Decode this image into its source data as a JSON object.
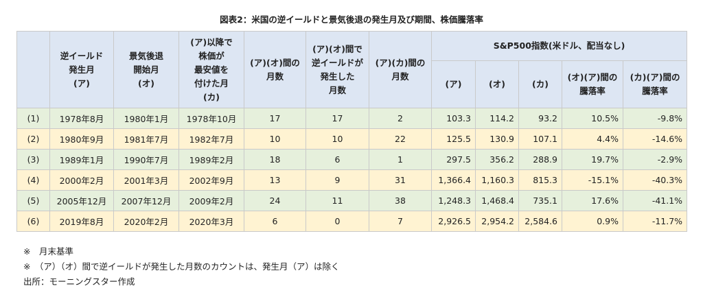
{
  "title": "図表2：米国の逆イールドと景気後退の発生月及び期間、株価騰落率",
  "table": {
    "header": [
      "",
      "逆イールド\n発生月\n(ア)",
      "景気後退\n開始月\n(オ)",
      "(ア)以降で\n株価が\n最安値を\n付けた月\n(カ)",
      "(ア)(オ)間の\n月数",
      "(ア)(オ)間で\n逆イールドが\n発生した\n月数",
      "(ア)(カ)間の\n月数"
    ],
    "group_header": "S&P500指数(米ドル、配当なし)",
    "sub_header": [
      "(ア)",
      "(オ)",
      "(カ)",
      "(オ)(ア)間の\n騰落率",
      "(カ)(ア)間の\n騰落率"
    ],
    "rows": [
      [
        "(1)",
        "1978年8月",
        "1980年1月",
        "1978年10月",
        "17",
        "17",
        "2",
        "103.3",
        "114.2",
        "93.2",
        "10.5%",
        "-9.8%"
      ],
      [
        "(2)",
        "1980年9月",
        "1981年7月",
        "1982年7月",
        "10",
        "10",
        "22",
        "125.5",
        "130.9",
        "107.1",
        "4.4%",
        "-14.6%"
      ],
      [
        "(3)",
        "1989年1月",
        "1990年7月",
        "1989年2月",
        "18",
        "6",
        "1",
        "297.5",
        "356.2",
        "288.9",
        "19.7%",
        "-2.9%"
      ],
      [
        "(4)",
        "2000年2月",
        "2001年3月",
        "2002年9月",
        "13",
        "9",
        "31",
        "1,366.4",
        "1,160.3",
        "815.3",
        "-15.1%",
        "-40.3%"
      ],
      [
        "(5)",
        "2005年12月",
        "2007年12月",
        "2009年2月",
        "24",
        "11",
        "38",
        "1,248.3",
        "1,468.4",
        "735.1",
        "17.6%",
        "-41.1%"
      ],
      [
        "(6)",
        "2019年8月",
        "2020年2月",
        "2020年3月",
        "6",
        "0",
        "7",
        "2,926.5",
        "2,954.2",
        "2,584.6",
        "0.9%",
        "-11.7%"
      ]
    ]
  },
  "notes": [
    "※　月末基準",
    "※　（ア）（オ）間で逆イールドが発生した月数のカウントは、発生月（ア）は除く",
    "出所：モーニングスター作成"
  ]
}
